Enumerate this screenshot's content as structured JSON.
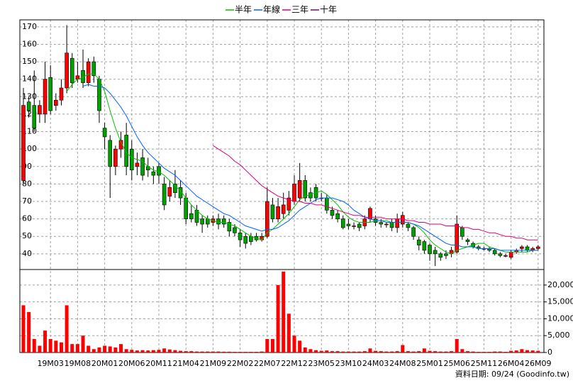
{
  "chart_data": {
    "type": "candlestick",
    "note": "資料日期: 09/24  (Goodinfo.tw)",
    "categories": [
      null,
      null,
      null,
      null,
      null,
      "19M03",
      null,
      null,
      null,
      null,
      "19M08",
      null,
      null,
      null,
      null,
      "20M01",
      null,
      null,
      null,
      null,
      "20M06",
      null,
      null,
      null,
      null,
      "20M11",
      null,
      null,
      null,
      null,
      "21M04",
      null,
      null,
      null,
      null,
      "21M09",
      null,
      null,
      null,
      null,
      "22M02",
      null,
      null,
      null,
      null,
      "22M07",
      null,
      null,
      null,
      null,
      "22M12",
      null,
      null,
      null,
      null,
      "23M05",
      null,
      null,
      null,
      null,
      "23M10",
      null,
      null,
      null,
      null,
      "24M03",
      null,
      null,
      null,
      null,
      "24M08",
      null,
      null,
      null,
      null,
      "25M01",
      null,
      null,
      null,
      null,
      "25M06",
      null,
      null,
      null,
      null,
      "25M11",
      null,
      null,
      null,
      null,
      "26M04",
      null,
      null,
      null,
      null,
      "26M09"
    ],
    "candles": {
      "up_color": "#ff0000",
      "down_color": "#00a000",
      "open": [
        82,
        127,
        125,
        120,
        120,
        141,
        125,
        128,
        135,
        152,
        140,
        145,
        138,
        150,
        140,
        112,
        105,
        90,
        100,
        108,
        100,
        90,
        95,
        90,
        87,
        90,
        80,
        73,
        80,
        78,
        72,
        63,
        65,
        60,
        60,
        58,
        60,
        60,
        58,
        55,
        52,
        50,
        50,
        50,
        48,
        50,
        68,
        60,
        63,
        65,
        70,
        72,
        82,
        75,
        78,
        72,
        72,
        65,
        63,
        60,
        57,
        56,
        57,
        56,
        60,
        60,
        58,
        57,
        58,
        55,
        57,
        57,
        55,
        48,
        47,
        45,
        42,
        40,
        40,
        40,
        41,
        55,
        48,
        46,
        44,
        43,
        43,
        42,
        40,
        39,
        38,
        41,
        43,
        44,
        42,
        43
      ],
      "close": [
        125,
        122,
        112,
        125,
        140,
        122,
        128,
        135,
        155,
        138,
        142,
        138,
        150,
        142,
        122,
        107,
        90,
        100,
        105,
        90,
        88,
        92,
        85,
        88,
        85,
        85,
        68,
        78,
        75,
        72,
        60,
        60,
        58,
        57,
        57,
        60,
        57,
        57,
        53,
        52,
        48,
        46,
        47,
        48,
        50,
        70,
        60,
        67,
        68,
        72,
        80,
        82,
        72,
        72,
        72,
        72,
        65,
        62,
        60,
        55,
        56,
        56,
        55,
        60,
        66,
        58,
        57,
        57,
        55,
        60,
        62,
        55,
        50,
        45,
        42,
        40,
        40,
        38,
        39,
        42,
        57,
        50,
        47,
        44,
        43,
        43,
        42,
        40,
        39,
        39,
        41,
        42,
        44,
        42,
        43,
        44
      ],
      "high": [
        135,
        130,
        145,
        128,
        150,
        148,
        132,
        140,
        171,
        155,
        150,
        157,
        152,
        153,
        142,
        115,
        108,
        102,
        110,
        115,
        105,
        98,
        100,
        95,
        90,
        92,
        84,
        82,
        88,
        82,
        75,
        68,
        68,
        62,
        62,
        62,
        63,
        62,
        60,
        57,
        54,
        52,
        52,
        52,
        52,
        78,
        72,
        72,
        75,
        76,
        85,
        92,
        85,
        78,
        80,
        75,
        74,
        67,
        65,
        62,
        60,
        58,
        58,
        62,
        67,
        62,
        60,
        58,
        60,
        63,
        64,
        58,
        56,
        50,
        48,
        46,
        44,
        41,
        42,
        44,
        62,
        56,
        49,
        47,
        45,
        44,
        44,
        43,
        41,
        40,
        42,
        43,
        45,
        45,
        44,
        45
      ],
      "low": [
        80,
        118,
        110,
        115,
        115,
        120,
        122,
        125,
        132,
        135,
        138,
        135,
        136,
        138,
        115,
        100,
        72,
        85,
        95,
        85,
        82,
        85,
        82,
        84,
        80,
        80,
        65,
        70,
        72,
        68,
        57,
        58,
        56,
        52,
        55,
        56,
        54,
        55,
        50,
        50,
        44,
        43,
        45,
        47,
        47,
        49,
        58,
        58,
        60,
        62,
        68,
        70,
        70,
        70,
        70,
        70,
        63,
        60,
        58,
        54,
        54,
        54,
        53,
        54,
        58,
        56,
        55,
        55,
        53,
        52,
        55,
        53,
        48,
        42,
        40,
        36,
        33,
        36,
        37,
        38,
        40,
        48,
        45,
        43,
        42,
        42,
        41,
        39,
        38,
        38,
        37,
        40,
        41,
        41,
        41,
        42
      ]
    },
    "series": [
      {
        "name": "半年",
        "color": "#00c000",
        "values": [
          null,
          null,
          null,
          null,
          null,
          null,
          null,
          null,
          133,
          137,
          140,
          141,
          143,
          143,
          140,
          133,
          122,
          112,
          104,
          98,
          95,
          94,
          93,
          90,
          88,
          87,
          85,
          82,
          79,
          76,
          72,
          68,
          65,
          62,
          60,
          59,
          58,
          58,
          57,
          56,
          54,
          52,
          50,
          49,
          48,
          52,
          54,
          57,
          60,
          63,
          67,
          71,
          73,
          74,
          75,
          76,
          74,
          71,
          68,
          64,
          61,
          59,
          58,
          58,
          58,
          59,
          59,
          59,
          58,
          58,
          58,
          58,
          57,
          55,
          52,
          48,
          45,
          43,
          41,
          40,
          42,
          43,
          44,
          45,
          46,
          46,
          44,
          43,
          42,
          41,
          41,
          41,
          41,
          41,
          42,
          42
        ]
      },
      {
        "name": "年線",
        "color": "#0060ff",
        "values": [
          null,
          null,
          null,
          null,
          null,
          null,
          null,
          null,
          null,
          null,
          null,
          136,
          137,
          136,
          136,
          135,
          132,
          128,
          124,
          119,
          113,
          107,
          102,
          98,
          95,
          92,
          89,
          87,
          85,
          82,
          79,
          76,
          73,
          71,
          69,
          67,
          65,
          63,
          62,
          60,
          58,
          56,
          55,
          54,
          53,
          54,
          54,
          55,
          57,
          59,
          62,
          65,
          67,
          69,
          71,
          72,
          72,
          72,
          71,
          70,
          68,
          65,
          63,
          61,
          60,
          59,
          59,
          58,
          58,
          58,
          58,
          58,
          57,
          56,
          54,
          52,
          50,
          48,
          46,
          45,
          45,
          44,
          44,
          44,
          43,
          43,
          43,
          43,
          42,
          42,
          42,
          42,
          42,
          42,
          42,
          42
        ]
      },
      {
        "name": "三年",
        "color": "#e0007a",
        "values": [
          null,
          null,
          null,
          null,
          null,
          null,
          null,
          null,
          null,
          null,
          null,
          null,
          null,
          null,
          null,
          null,
          null,
          null,
          null,
          null,
          null,
          null,
          null,
          null,
          null,
          null,
          null,
          null,
          null,
          null,
          null,
          null,
          null,
          null,
          null,
          102,
          100,
          98,
          96,
          93,
          91,
          88,
          85,
          82,
          79,
          77,
          75,
          73,
          72,
          71,
          70,
          70,
          69,
          69,
          68,
          68,
          67,
          66,
          65,
          64,
          63,
          62,
          62,
          61,
          61,
          61,
          61,
          60,
          60,
          60,
          60,
          59,
          59,
          58,
          58,
          57,
          57,
          57,
          56,
          56,
          56,
          55,
          55,
          54,
          54,
          53,
          52,
          52,
          51,
          50,
          50,
          49,
          49,
          48,
          48,
          48
        ]
      },
      {
        "name": "十年",
        "color": "#800080",
        "values": [
          null,
          null,
          null,
          null,
          null,
          null,
          null,
          null,
          null,
          null,
          null,
          null,
          null,
          null,
          null,
          null,
          null,
          null,
          null,
          null,
          null,
          null,
          null,
          null,
          null,
          null,
          null,
          null,
          null,
          null,
          null,
          null,
          null,
          null,
          null,
          null,
          null,
          null,
          null,
          null,
          null,
          null,
          null,
          null,
          null,
          null,
          null,
          null,
          null,
          null,
          null,
          null,
          null,
          null,
          null,
          null,
          null,
          null,
          null,
          null,
          null,
          null,
          null,
          null,
          null,
          null,
          null,
          null,
          null,
          null,
          null,
          null,
          null,
          null,
          null,
          null,
          null,
          null,
          null,
          null,
          null,
          null,
          null,
          null,
          null,
          null,
          null,
          null,
          null,
          null,
          null,
          null,
          null,
          null,
          null,
          null
        ]
      }
    ],
    "ylim": [
      31,
      174
    ],
    "yticks": [
      40,
      50,
      60,
      70,
      80,
      90,
      100,
      110,
      120,
      130,
      140,
      150,
      160,
      170
    ],
    "volume": {
      "color": "#ff0000",
      "values": [
        14000,
        12000,
        4000,
        2000,
        6500,
        4000,
        3500,
        3000,
        14000,
        2500,
        2500,
        5000,
        2000,
        1000,
        1500,
        2000,
        1800,
        1500,
        2500,
        1000,
        800,
        600,
        700,
        600,
        700,
        800,
        1200,
        900,
        700,
        500,
        400,
        400,
        300,
        300,
        300,
        300,
        300,
        250,
        250,
        200,
        200,
        200,
        200,
        200,
        300,
        4000,
        4000,
        20000,
        24000,
        11500,
        5000,
        3500,
        1500,
        1000,
        700,
        500,
        600,
        400,
        400,
        300,
        300,
        300,
        300,
        400,
        1200,
        500,
        400,
        300,
        300,
        400,
        2200,
        400,
        300,
        400,
        1200,
        500,
        400,
        300,
        300,
        400,
        4000,
        1000,
        400,
        300,
        200,
        200,
        200,
        300,
        300,
        200,
        500,
        600,
        1000,
        700,
        600,
        500
      ],
      "ylim": [
        0,
        24600
      ],
      "yticks": [
        0,
        {
          "value": 5000,
          "label": "5,000"
        },
        {
          "value": 10000,
          "label": "10,000"
        },
        {
          "value": 15000,
          "label": "15,000"
        },
        {
          "value": 20000,
          "label": "20,000"
        }
      ]
    },
    "grid": true
  }
}
